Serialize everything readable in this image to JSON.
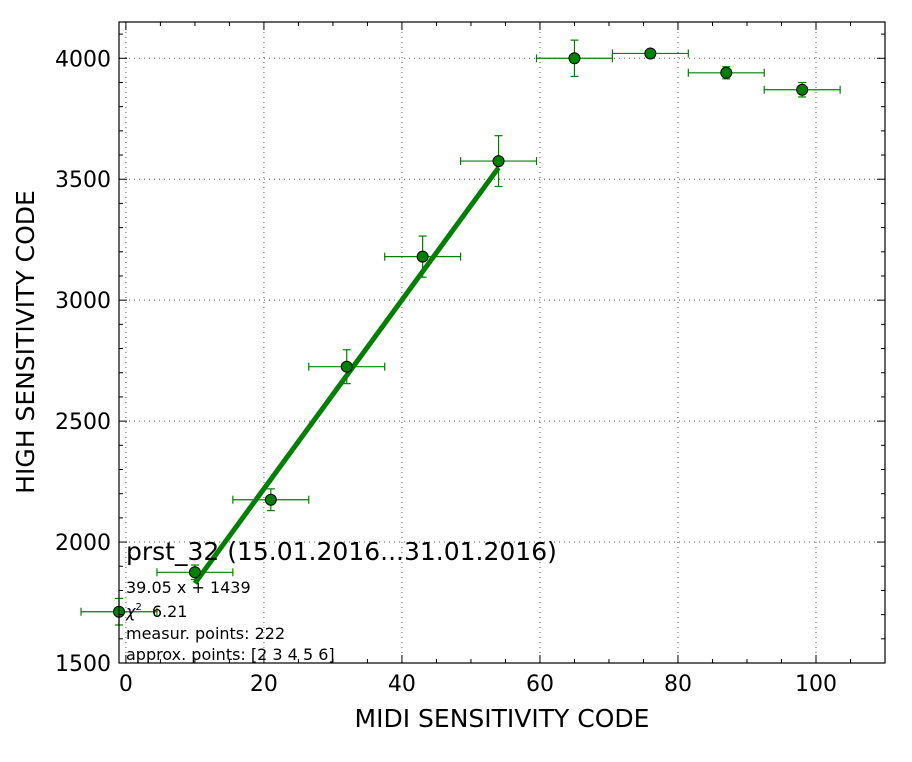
{
  "chart_data": {
    "type": "scatter",
    "xlabel": "MIDI SENSITIVITY CODE",
    "ylabel": "HIGH SENSITIVITY CODE",
    "xlim": [
      -1,
      110
    ],
    "ylim": [
      1500,
      4150
    ],
    "xticks": [
      0,
      20,
      40,
      60,
      80,
      100
    ],
    "yticks": [
      1500,
      2000,
      2500,
      3000,
      3500,
      4000
    ],
    "grid": true,
    "colors": {
      "series": "#008000",
      "marker_edge": "#000000",
      "fit": "#008000"
    },
    "points": [
      {
        "x": -1,
        "y": 1712,
        "xerr": 5.5,
        "yerr": 55
      },
      {
        "x": 10,
        "y": 1875,
        "xerr": 5.5,
        "yerr": 30
      },
      {
        "x": 21,
        "y": 2175,
        "xerr": 5.5,
        "yerr": 45
      },
      {
        "x": 32,
        "y": 2725,
        "xerr": 5.5,
        "yerr": 70
      },
      {
        "x": 43,
        "y": 3180,
        "xerr": 5.5,
        "yerr": 85
      },
      {
        "x": 54,
        "y": 3575,
        "xerr": 5.5,
        "yerr": 105
      },
      {
        "x": 65,
        "y": 4000,
        "xerr": 5.5,
        "yerr": 75
      },
      {
        "x": 76,
        "y": 4020,
        "xerr": 5.5,
        "yerr": 15
      },
      {
        "x": 87,
        "y": 3940,
        "xerr": 5.5,
        "yerr": 25
      },
      {
        "x": 98,
        "y": 3870,
        "xerr": 5.5,
        "yerr": 30
      }
    ],
    "fit": {
      "slope": 39.05,
      "intercept": 1439,
      "x_range": [
        10,
        54
      ]
    },
    "annotations": {
      "title": "prst_32 (15.01.2016...31.01.2016)",
      "equation": "39.05 x + 1439",
      "chi_symbol": "χ",
      "chi_exponent": "2",
      "chi_value": "6.21",
      "measur": "measur. points: 222",
      "approx": "approx. points: [2 3 4 5 6]"
    }
  }
}
